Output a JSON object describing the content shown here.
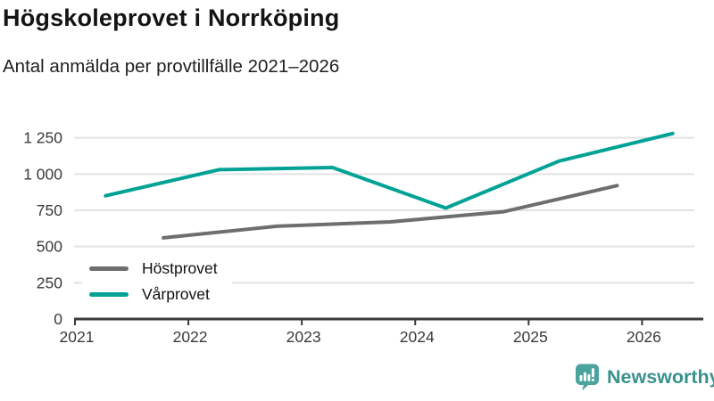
{
  "header": {
    "title": "Högskoleprovet i Norrköping",
    "subtitle": "Antal anmälda per provtillfälle 2021–2026"
  },
  "chart_data": {
    "type": "line",
    "title": "Högskoleprovet i Norrköping",
    "subtitle": "Antal anmälda per provtillfälle 2021–2026",
    "xlabel": "",
    "ylabel": "Antal anmälda",
    "x_ticks": [
      2021,
      2022,
      2023,
      2024,
      2025,
      2026
    ],
    "y_ticks": [
      0,
      250,
      500,
      750,
      1000,
      1250
    ],
    "y_tick_labels": [
      "0",
      "250",
      "500",
      "750",
      "1 000",
      "1 250"
    ],
    "xlim": [
      2021,
      2026.54
    ],
    "ylim": [
      0,
      1340
    ],
    "grid": "horizontal",
    "grid_color": "#e3e3e3",
    "axis_color": "#3a3a3a",
    "legend_position": "inside-bottom-left",
    "series": [
      {
        "name": "Höstprovet",
        "color": "#6e6e6e",
        "points": [
          [
            2021.78,
            560
          ],
          [
            2022.78,
            640
          ],
          [
            2023.78,
            670
          ],
          [
            2024.78,
            740
          ],
          [
            2025.78,
            920
          ]
        ]
      },
      {
        "name": "Vårprovet",
        "color": "#00a296",
        "points": [
          [
            2021.27,
            850
          ],
          [
            2022.27,
            1030
          ],
          [
            2023.27,
            1045
          ],
          [
            2024.27,
            765
          ],
          [
            2025.27,
            1090
          ],
          [
            2026.27,
            1280
          ]
        ]
      }
    ]
  },
  "footer": {
    "brand": "Newsworthy",
    "brand_color": "#3a928c",
    "icon_color": "#4ba39d",
    "icon": "bar-chart-speech-bubble-icon"
  }
}
